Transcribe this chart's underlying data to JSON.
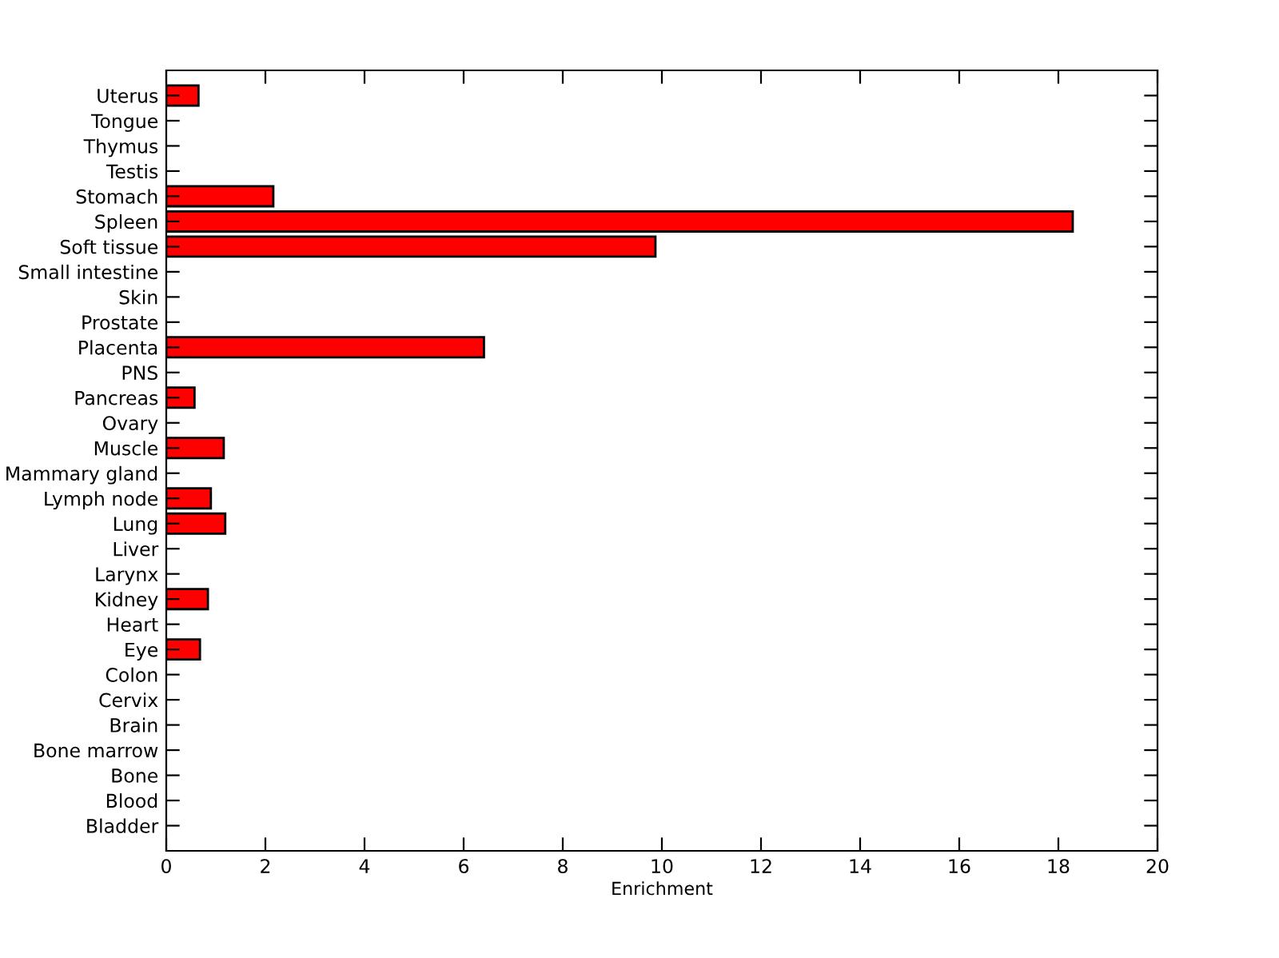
{
  "chart_data": {
    "type": "bar",
    "orientation": "horizontal",
    "xlabel": "Enrichment",
    "categories": [
      "Uterus",
      "Tongue",
      "Thymus",
      "Testis",
      "Stomach",
      "Spleen",
      "Soft tissue",
      "Small intestine",
      "Skin",
      "Prostate",
      "Placenta",
      "PNS",
      "Pancreas",
      "Ovary",
      "Muscle",
      "Mammary gland",
      "Lymph node",
      "Lung",
      "Liver",
      "Larynx",
      "Kidney",
      "Heart",
      "Eye",
      "Colon",
      "Cervix",
      "Brain",
      "Bone marrow",
      "Bone",
      "Blood",
      "Bladder"
    ],
    "values": [
      0.65,
      0,
      0,
      0,
      2.16,
      18.29,
      9.87,
      0,
      0,
      0,
      6.41,
      0,
      0.57,
      0,
      1.16,
      0,
      0.9,
      1.19,
      0,
      0,
      0.84,
      0,
      0.68,
      0,
      0,
      0,
      0,
      0,
      0,
      0
    ],
    "color": "#ff0000",
    "xlim": [
      0,
      20
    ],
    "xticks": [
      0,
      2,
      4,
      6,
      8,
      10,
      12,
      14,
      16,
      18,
      20
    ],
    "grid": false
  }
}
